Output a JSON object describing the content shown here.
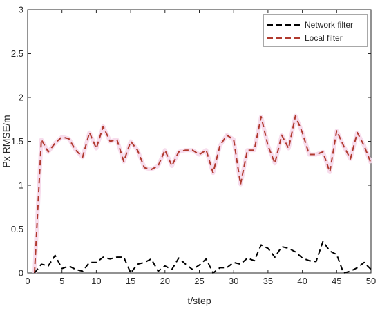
{
  "chart_data": {
    "type": "line",
    "xlabel": "t/step",
    "ylabel": "Px RMSE/m",
    "xlim": [
      0,
      50
    ],
    "ylim": [
      0,
      3
    ],
    "xticks": [
      "0",
      "5",
      "10",
      "15",
      "20",
      "25",
      "30",
      "35",
      "40",
      "45",
      "50"
    ],
    "yticks": [
      "0",
      "0.5",
      "1",
      "1.5",
      "2",
      "2.5",
      "3"
    ],
    "grid": false,
    "legend": "top-right",
    "x": [
      1,
      2,
      3,
      4,
      5,
      6,
      7,
      8,
      9,
      10,
      11,
      12,
      13,
      14,
      15,
      16,
      17,
      18,
      19,
      20,
      21,
      22,
      23,
      24,
      25,
      26,
      27,
      28,
      29,
      30,
      31,
      32,
      33,
      34,
      35,
      36,
      37,
      38,
      39,
      40,
      41,
      42,
      43,
      44,
      45,
      46,
      47,
      48,
      49,
      50
    ],
    "series": [
      {
        "name": "Network filter",
        "color": "#000000",
        "style": "dashed",
        "values": [
          0.0,
          0.1,
          0.08,
          0.2,
          0.05,
          0.08,
          0.04,
          0.02,
          0.12,
          0.12,
          0.18,
          0.16,
          0.18,
          0.18,
          0.0,
          0.1,
          0.12,
          0.16,
          0.02,
          0.08,
          0.04,
          0.17,
          0.1,
          0.04,
          0.09,
          0.16,
          0.0,
          0.06,
          0.06,
          0.12,
          0.1,
          0.17,
          0.14,
          0.32,
          0.28,
          0.18,
          0.3,
          0.28,
          0.24,
          0.17,
          0.14,
          0.13,
          0.36,
          0.25,
          0.21,
          0.0,
          0.02,
          0.06,
          0.12,
          0.04
        ]
      },
      {
        "name": "Local filter",
        "color": "#b03a2e",
        "style": "dashed",
        "values": [
          0.0,
          1.52,
          1.38,
          1.48,
          1.55,
          1.53,
          1.4,
          1.32,
          1.6,
          1.42,
          1.67,
          1.5,
          1.52,
          1.27,
          1.5,
          1.4,
          1.2,
          1.18,
          1.22,
          1.4,
          1.22,
          1.38,
          1.4,
          1.4,
          1.35,
          1.4,
          1.14,
          1.45,
          1.57,
          1.52,
          1.01,
          1.4,
          1.4,
          1.78,
          1.45,
          1.25,
          1.57,
          1.42,
          1.79,
          1.6,
          1.35,
          1.35,
          1.38,
          1.15,
          1.62,
          1.45,
          1.3,
          1.6,
          1.45,
          1.25
        ]
      }
    ]
  }
}
